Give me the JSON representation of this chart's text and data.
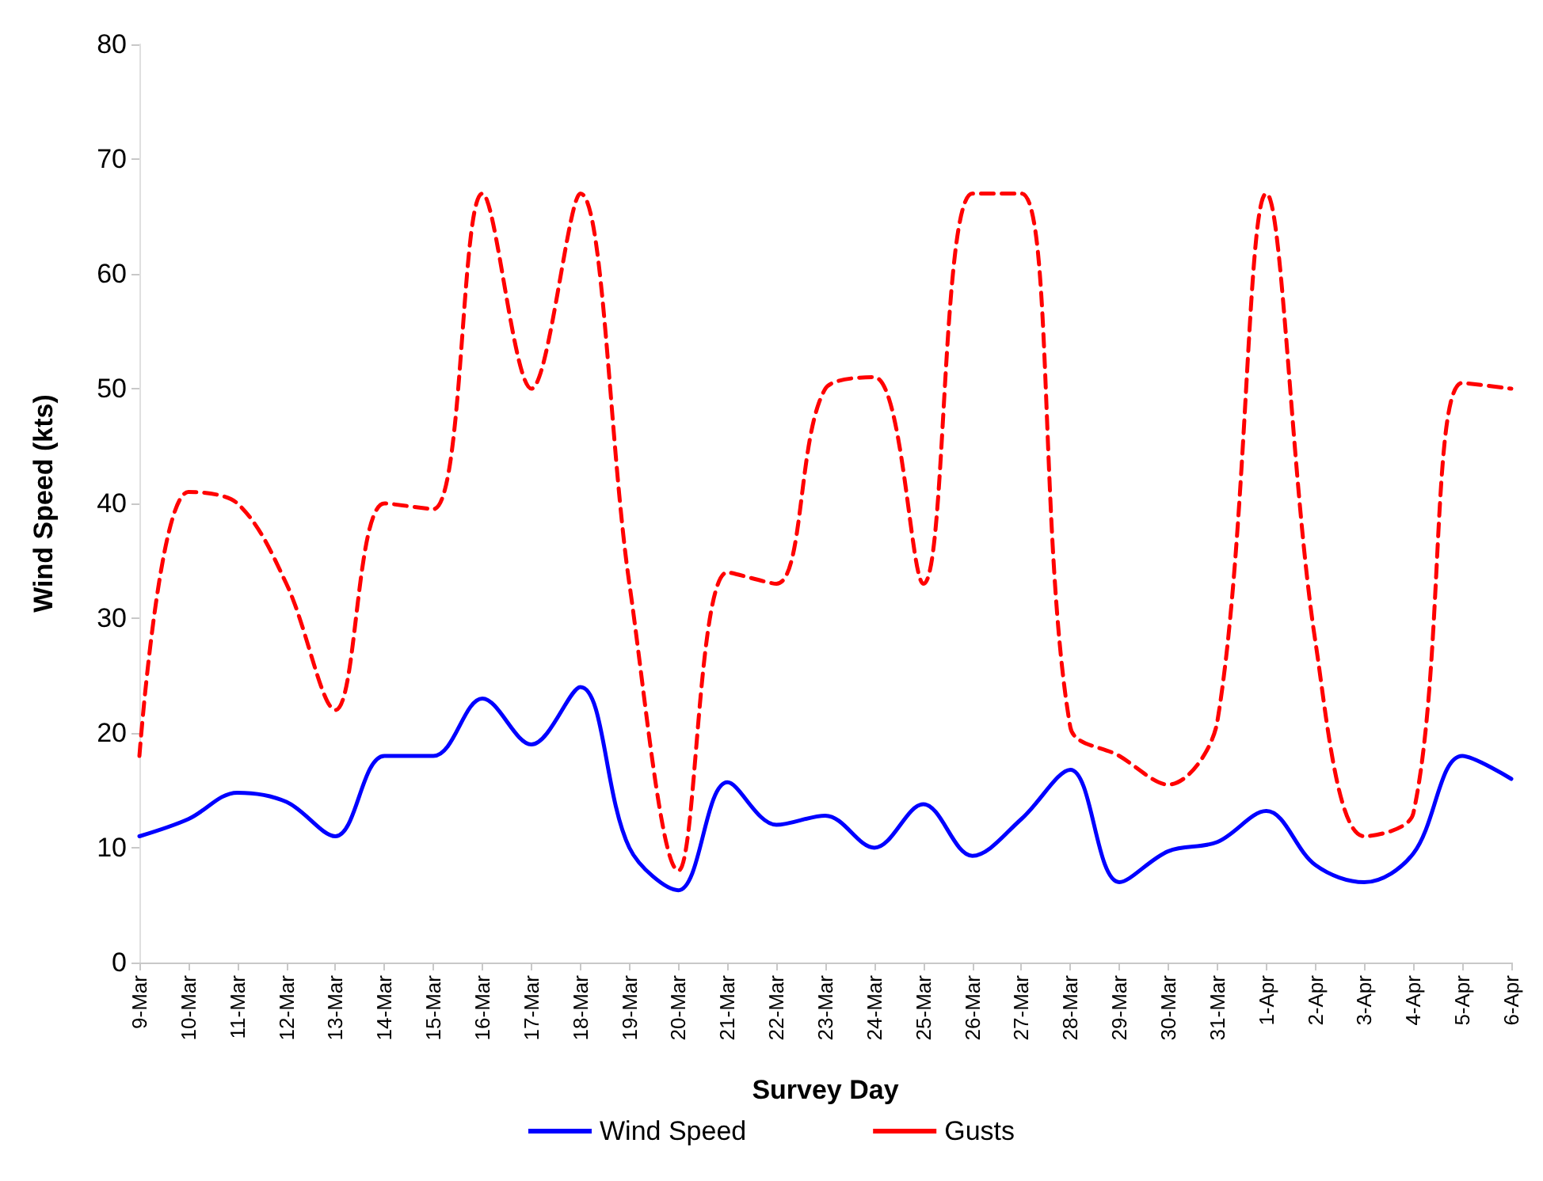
{
  "chart_data": {
    "type": "line",
    "xlabel": "Survey Day",
    "ylabel": "Wind Speed (kts)",
    "categories": [
      "9-Mar",
      "10-Mar",
      "11-Mar",
      "12-Mar",
      "13-Mar",
      "14-Mar",
      "15-Mar",
      "16-Mar",
      "17-Mar",
      "18-Mar",
      "19-Mar",
      "20-Mar",
      "21-Mar",
      "22-Mar",
      "23-Mar",
      "24-Mar",
      "25-Mar",
      "26-Mar",
      "27-Mar",
      "28-Mar",
      "29-Mar",
      "30-Mar",
      "31-Mar",
      "1-Apr",
      "2-Apr",
      "3-Apr",
      "4-Apr",
      "5-Apr",
      "6-Apr"
    ],
    "series": [
      {
        "name": "Wind Speed",
        "color": "#0000ff",
        "line_style": "solid",
        "values": [
          11,
          12.5,
          14.8,
          14,
          11,
          18,
          18,
          23,
          19,
          24,
          10,
          6.3,
          15.7,
          12,
          12.8,
          10,
          13.8,
          9.3,
          12.5,
          16.8,
          7,
          9.7,
          10.5,
          13.2,
          8.5,
          7,
          9.5,
          18,
          16
        ]
      },
      {
        "name": "Gusts",
        "color": "#ff0000",
        "line_style": "dashed",
        "values": [
          18,
          41,
          40,
          33,
          22,
          40,
          39.5,
          67,
          50,
          67,
          33,
          8,
          34,
          33,
          50,
          51,
          33,
          67,
          67,
          20.5,
          18,
          15.5,
          21,
          67,
          28,
          11,
          13,
          50.5,
          50
        ]
      }
    ],
    "ylim": [
      0,
      80
    ],
    "yticks": [
      0,
      10,
      20,
      30,
      40,
      50,
      60,
      70,
      80
    ],
    "grid": false,
    "legend": "bottom",
    "marker": "none"
  }
}
